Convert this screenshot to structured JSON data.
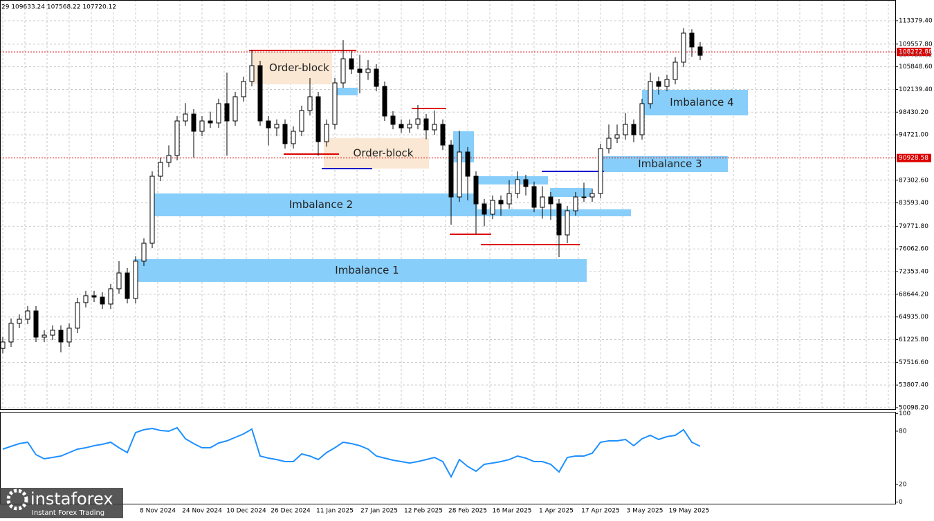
{
  "header": "29 109633.24 107568.22 107720.12",
  "watermark": {
    "brand": "instaforex",
    "tagline": "Instant Forex Trading"
  },
  "chart_data": [
    {
      "type": "candlestick",
      "ylim": [
        49759,
        116769
      ],
      "yticks": [
        {
          "value": 113379.4,
          "label": "113379.40"
        },
        {
          "value": 109557.8,
          "label": "109557.80"
        },
        {
          "value": 105848.6,
          "label": "105848.60"
        },
        {
          "value": 102139.4,
          "label": "102139.40"
        },
        {
          "value": 98430.2,
          "label": "98430.20"
        },
        {
          "value": 94721,
          "label": "94721.00"
        },
        {
          "value": 87302.6,
          "label": "87302.60"
        },
        {
          "value": 83593.4,
          "label": "83593.40"
        },
        {
          "value": 79771.8,
          "label": "79771.80"
        },
        {
          "value": 76062.6,
          "label": "76062.60"
        },
        {
          "value": 72353.4,
          "label": "72353.40"
        },
        {
          "value": 68644.2,
          "label": "68644.20"
        },
        {
          "value": 64935,
          "label": "64935.00"
        },
        {
          "value": 61225.8,
          "label": "61225.80"
        },
        {
          "value": 57516.6,
          "label": "57516.60"
        },
        {
          "value": 53807.4,
          "label": "53807.40"
        },
        {
          "value": 50098.2,
          "label": "50098.20"
        }
      ],
      "xticks": [
        "8 Nov 2024",
        "24 Nov 2024",
        "10 Dec 2024",
        "26 Dec 2024",
        "11 Jan 2025",
        "27 Jan 2025",
        "12 Feb 2025",
        "28 Feb 2025",
        "16 Mar 2025",
        "1 Apr 2025",
        "17 Apr 2025",
        "3 May 2025",
        "19 May 2025"
      ],
      "grid": true,
      "candles": [
        [
          59800,
          61640,
          59000,
          60840
        ],
        [
          60840,
          64690,
          60040,
          63890
        ],
        [
          63890,
          65360,
          63090,
          64560
        ],
        [
          64560,
          66720,
          63760,
          65920
        ],
        [
          65920,
          66720,
          60830,
          61630
        ],
        [
          61630,
          62760,
          60830,
          61960
        ],
        [
          61960,
          63560,
          61160,
          62760
        ],
        [
          62760,
          63560,
          59140,
          60840
        ],
        [
          60840,
          63900,
          60040,
          63100
        ],
        [
          63100,
          68080,
          62300,
          67280
        ],
        [
          67280,
          69210,
          66480,
          68410
        ],
        [
          68410,
          69210,
          67380,
          68180
        ],
        [
          68180,
          68980,
          66250,
          67050
        ],
        [
          67050,
          70340,
          66250,
          69540
        ],
        [
          69540,
          74060,
          68740,
          72130
        ],
        [
          72130,
          72930,
          67150,
          67950
        ],
        [
          67950,
          74860,
          67150,
          74060
        ],
        [
          74060,
          77790,
          73260,
          76990
        ],
        [
          76990,
          88750,
          76190,
          87950
        ],
        [
          87950,
          91010,
          87150,
          90210
        ],
        [
          90210,
          93000,
          89410,
          91340
        ],
        [
          91340,
          97790,
          90540,
          96990
        ],
        [
          96990,
          99900,
          96190,
          98120
        ],
        [
          98120,
          98920,
          91000,
          95300
        ],
        [
          95300,
          97790,
          94500,
          96990
        ],
        [
          96990,
          98500,
          95860,
          96660
        ],
        [
          96660,
          100620,
          95860,
          99820
        ],
        [
          99820,
          104900,
          91300,
          96990
        ],
        [
          96990,
          101750,
          96190,
          100950
        ],
        [
          100950,
          104240,
          100150,
          103440
        ],
        [
          103440,
          108630,
          102640,
          106030
        ],
        [
          106030,
          106830,
          96190,
          96990
        ],
        [
          96990,
          97790,
          93000,
          95860
        ],
        [
          95860,
          97230,
          94500,
          96430
        ],
        [
          96430,
          97230,
          92470,
          93270
        ],
        [
          93270,
          96100,
          92470,
          95300
        ],
        [
          95300,
          99490,
          94500,
          98690
        ],
        [
          98690,
          104000,
          97890,
          100950
        ],
        [
          100950,
          101750,
          91300,
          93600
        ],
        [
          93600,
          97230,
          92800,
          96430
        ],
        [
          96430,
          104010,
          95630,
          103210
        ],
        [
          103210,
          110200,
          102410,
          107160
        ],
        [
          107160,
          108400,
          104670,
          105470
        ],
        [
          105470,
          107800,
          101500,
          104900
        ],
        [
          104900,
          106950,
          103700,
          105470
        ],
        [
          105470,
          106270,
          101840,
          102640
        ],
        [
          102640,
          103440,
          96990,
          97790
        ],
        [
          97790,
          98590,
          95630,
          96430
        ],
        [
          96430,
          97230,
          95060,
          95860
        ],
        [
          95860,
          97230,
          95060,
          96430
        ],
        [
          96430,
          99600,
          95630,
          97330
        ],
        [
          97330,
          98130,
          94000,
          95530
        ],
        [
          95530,
          98700,
          94730,
          96430
        ],
        [
          96430,
          97230,
          92240,
          93040
        ],
        [
          93040,
          93840,
          80000,
          84560
        ],
        [
          84560,
          95400,
          83760,
          91910
        ],
        [
          91910,
          92710,
          84000,
          87950
        ],
        [
          87950,
          88750,
          78460,
          83430
        ],
        [
          83430,
          84230,
          79770,
          81740
        ],
        [
          81740,
          84800,
          80940,
          84000
        ],
        [
          84000,
          84800,
          81500,
          83430
        ],
        [
          83430,
          87300,
          82630,
          85130
        ],
        [
          85130,
          88750,
          84330,
          87390
        ],
        [
          87390,
          88190,
          84800,
          86260
        ],
        [
          86260,
          87060,
          82070,
          82870
        ],
        [
          82870,
          86300,
          81000,
          84560
        ],
        [
          84560,
          85360,
          80800,
          83430
        ],
        [
          83430,
          84230,
          74730,
          78350
        ],
        [
          78350,
          83100,
          76990,
          82300
        ],
        [
          82300,
          85360,
          81500,
          84560
        ],
        [
          84560,
          86900,
          83760,
          84560
        ],
        [
          84560,
          85930,
          83760,
          85130
        ],
        [
          85130,
          93270,
          84330,
          92470
        ],
        [
          92470,
          96400,
          91670,
          94170
        ],
        [
          94170,
          96400,
          93370,
          94730
        ],
        [
          94730,
          98300,
          93930,
          96430
        ],
        [
          96430,
          97230,
          93500,
          94730
        ],
        [
          94730,
          100620,
          93930,
          99820
        ],
        [
          99820,
          104900,
          99020,
          103440
        ],
        [
          103440,
          104240,
          101300,
          102640
        ],
        [
          102640,
          104570,
          101840,
          103770
        ],
        [
          103770,
          107400,
          102970,
          106600
        ],
        [
          106600,
          112150,
          105800,
          111350
        ],
        [
          111350,
          112000,
          107500,
          109090
        ],
        [
          109090,
          109890,
          106920,
          107720.12
        ]
      ],
      "zones": [
        {
          "label": "Order-block",
          "top": 108290,
          "bottom": 102980,
          "color": "#fae8d4"
        },
        {
          "label": "Order-block",
          "top": 94170,
          "bottom": 89200,
          "color": "#fae8d4"
        },
        {
          "label": "Imbalance 1",
          "top": 74390,
          "bottom": 70670,
          "color": "#87cefa"
        },
        {
          "label": "Imbalance 2",
          "top": 85130,
          "bottom": 81400,
          "color": "#87cefa"
        },
        {
          "label": "Imbalance 3",
          "top": 91230,
          "bottom": 88630,
          "color": "#87cefa"
        },
        {
          "label": "Imbalance 4",
          "top": 102080,
          "bottom": 97900,
          "color": "#87cefa"
        },
        {
          "top": 102420,
          "bottom": 101180,
          "color": "#87cefa"
        },
        {
          "top": 95300,
          "bottom": 90210,
          "color": "#87cefa"
        },
        {
          "top": 87950,
          "bottom": 86600,
          "color": "#87cefa"
        },
        {
          "top": 86030,
          "bottom": 84560,
          "color": "#87cefa"
        },
        {
          "top": 82530,
          "bottom": 81400,
          "color": "#87cefa"
        }
      ],
      "levels": [
        {
          "value": 108520,
          "color": "#dd0000"
        },
        {
          "value": 91570,
          "color": "#dd0000"
        },
        {
          "value": 89200,
          "color": "#0000cc"
        },
        {
          "value": 99030,
          "color": "#dd0000"
        },
        {
          "value": 78460,
          "color": "#dd0000"
        },
        {
          "value": 76770,
          "color": "#dd0000"
        },
        {
          "value": 88750,
          "color": "#0000cc"
        }
      ],
      "markers": [
        {
          "value": 108272.88,
          "color": "#dd0000"
        },
        {
          "value": 90928.58,
          "color": "#dd0000"
        }
      ],
      "last_price": 107720.12
    },
    {
      "type": "line",
      "ylim": [
        -2.6,
        101.8
      ],
      "yticks": [
        100,
        80,
        20,
        0
      ],
      "color": "#1e90ff",
      "values": [
        59.7,
        62.9,
        66,
        67.5,
        53.5,
        48.8,
        50.4,
        51.9,
        55.8,
        59.7,
        61.3,
        63.6,
        65.2,
        67.5,
        61.3,
        55.8,
        78.4,
        81.6,
        83.1,
        80.8,
        80,
        83.9,
        71.4,
        66,
        61.3,
        61.3,
        66.7,
        69.1,
        73,
        76.9,
        82.3,
        51.9,
        49.6,
        48,
        45.7,
        45.7,
        54.3,
        51.9,
        48,
        55.8,
        61.3,
        67.5,
        66,
        63.6,
        59.7,
        51.9,
        49.6,
        47.3,
        45.7,
        44.1,
        45.7,
        48,
        50.4,
        45.7,
        28.6,
        48,
        40.2,
        34.8,
        42.6,
        44.1,
        45.7,
        48,
        51.9,
        49.6,
        45.7,
        45.7,
        42.6,
        34,
        50.4,
        51.9,
        51.9,
        55.1,
        67.5,
        69.1,
        69.1,
        70.6,
        63.6,
        71.4,
        75.3,
        70.6,
        73.8,
        75.3,
        81.6,
        67.5,
        62.9
      ]
    }
  ]
}
